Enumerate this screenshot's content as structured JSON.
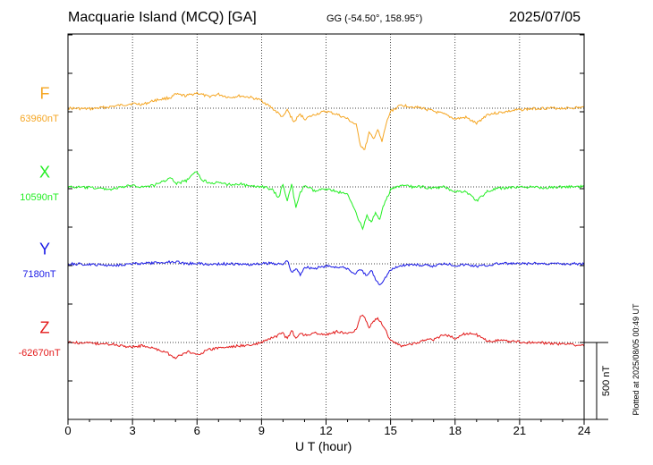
{
  "header": {
    "station": "Macquarie Island (MCQ)  [GA]",
    "coords": "GG (-54.50°, 158.95°)",
    "date": "2025/07/05"
  },
  "plotted_note": "Plotted at 2025/08/05 00:49 UT",
  "scale_label": "500 nT",
  "chart_data": {
    "type": "line",
    "title": "Macquarie Island (MCQ)  [GA]",
    "xlabel": "U T (hour)",
    "ylabel": "",
    "xlim": [
      0,
      24
    ],
    "xticks": [
      "0",
      "3",
      "6",
      "9",
      "12",
      "15",
      "18",
      "21",
      "24"
    ],
    "grid": "dotted vertical lines every 3 hours; dotted baseline per component",
    "units": "nT",
    "scale_bar_nT": 500,
    "series": [
      {
        "name": "F",
        "baseline_label": "63960nT",
        "baseline": 63960,
        "color": "#f5a623",
        "points": [
          [
            0,
            63960
          ],
          [
            1,
            63955
          ],
          [
            2,
            63970
          ],
          [
            3,
            63990
          ],
          [
            3.5,
            63985
          ],
          [
            4,
            64010
          ],
          [
            4.8,
            64030
          ],
          [
            5,
            64050
          ],
          [
            5.5,
            64040
          ],
          [
            6,
            64060
          ],
          [
            6.5,
            64035
          ],
          [
            7,
            64050
          ],
          [
            7.5,
            64030
          ],
          [
            8,
            64040
          ],
          [
            8.5,
            64030
          ],
          [
            9,
            64010
          ],
          [
            9.5,
            63960
          ],
          [
            10,
            63900
          ],
          [
            10.2,
            63950
          ],
          [
            10.5,
            63870
          ],
          [
            10.8,
            63920
          ],
          [
            11,
            63890
          ],
          [
            11.5,
            63920
          ],
          [
            12,
            63940
          ],
          [
            12.5,
            63920
          ],
          [
            13,
            63890
          ],
          [
            13.4,
            63850
          ],
          [
            13.6,
            63720
          ],
          [
            13.8,
            63690
          ],
          [
            14,
            63800
          ],
          [
            14.2,
            63760
          ],
          [
            14.4,
            63820
          ],
          [
            14.6,
            63740
          ],
          [
            14.8,
            63860
          ],
          [
            15,
            63940
          ],
          [
            15.5,
            63980
          ],
          [
            16,
            63970
          ],
          [
            16.5,
            63960
          ],
          [
            17,
            63940
          ],
          [
            17.5,
            63920
          ],
          [
            18,
            63890
          ],
          [
            18.5,
            63900
          ],
          [
            19,
            63860
          ],
          [
            19.5,
            63920
          ],
          [
            20,
            63930
          ],
          [
            21,
            63950
          ],
          [
            22,
            63960
          ],
          [
            23,
            63960
          ],
          [
            24,
            63965
          ]
        ]
      },
      {
        "name": "X",
        "baseline_label": "10590nT",
        "baseline": 10590,
        "color": "#22ee22",
        "points": [
          [
            0,
            10590
          ],
          [
            1,
            10585
          ],
          [
            2,
            10575
          ],
          [
            3,
            10600
          ],
          [
            3.5,
            10590
          ],
          [
            4,
            10600
          ],
          [
            4.8,
            10650
          ],
          [
            5,
            10610
          ],
          [
            5.5,
            10630
          ],
          [
            6,
            10690
          ],
          [
            6.2,
            10640
          ],
          [
            6.5,
            10620
          ],
          [
            7,
            10615
          ],
          [
            7.5,
            10605
          ],
          [
            8,
            10610
          ],
          [
            8.5,
            10590
          ],
          [
            9,
            10595
          ],
          [
            9.5,
            10570
          ],
          [
            9.8,
            10520
          ],
          [
            10,
            10610
          ],
          [
            10.2,
            10500
          ],
          [
            10.4,
            10610
          ],
          [
            10.6,
            10450
          ],
          [
            10.8,
            10550
          ],
          [
            11,
            10600
          ],
          [
            11.5,
            10560
          ],
          [
            12,
            10580
          ],
          [
            12.5,
            10560
          ],
          [
            13,
            10540
          ],
          [
            13.3,
            10460
          ],
          [
            13.5,
            10380
          ],
          [
            13.7,
            10320
          ],
          [
            13.9,
            10400
          ],
          [
            14.1,
            10360
          ],
          [
            14.3,
            10420
          ],
          [
            14.5,
            10380
          ],
          [
            14.7,
            10480
          ],
          [
            15,
            10570
          ],
          [
            15.5,
            10600
          ],
          [
            16,
            10590
          ],
          [
            16.5,
            10590
          ],
          [
            17,
            10580
          ],
          [
            17.5,
            10590
          ],
          [
            18,
            10560
          ],
          [
            18.5,
            10560
          ],
          [
            19,
            10500
          ],
          [
            19.5,
            10560
          ],
          [
            20,
            10580
          ],
          [
            21,
            10590
          ],
          [
            22,
            10585
          ],
          [
            23,
            10590
          ],
          [
            24,
            10592
          ]
        ]
      },
      {
        "name": "Y",
        "baseline_label": "7180nT",
        "baseline": 7180,
        "color": "#1a1ae6",
        "points": [
          [
            0,
            7180
          ],
          [
            1,
            7175
          ],
          [
            2,
            7170
          ],
          [
            3,
            7180
          ],
          [
            4,
            7185
          ],
          [
            5,
            7195
          ],
          [
            5.5,
            7180
          ],
          [
            6,
            7185
          ],
          [
            6.5,
            7175
          ],
          [
            7,
            7180
          ],
          [
            8,
            7178
          ],
          [
            8.5,
            7175
          ],
          [
            9,
            7180
          ],
          [
            9.5,
            7185
          ],
          [
            10,
            7175
          ],
          [
            10.2,
            7205
          ],
          [
            10.4,
            7120
          ],
          [
            10.6,
            7150
          ],
          [
            10.8,
            7110
          ],
          [
            11,
            7160
          ],
          [
            11.5,
            7150
          ],
          [
            12,
            7165
          ],
          [
            12.5,
            7160
          ],
          [
            13,
            7150
          ],
          [
            13.3,
            7115
          ],
          [
            13.6,
            7140
          ],
          [
            13.9,
            7100
          ],
          [
            14.1,
            7140
          ],
          [
            14.3,
            7080
          ],
          [
            14.5,
            7045
          ],
          [
            14.7,
            7080
          ],
          [
            15,
            7140
          ],
          [
            15.5,
            7170
          ],
          [
            16,
            7175
          ],
          [
            16.5,
            7170
          ],
          [
            17,
            7165
          ],
          [
            17.5,
            7185
          ],
          [
            18,
            7170
          ],
          [
            18.5,
            7175
          ],
          [
            19,
            7165
          ],
          [
            19.5,
            7170
          ],
          [
            20,
            7182
          ],
          [
            21,
            7180
          ],
          [
            22,
            7182
          ],
          [
            23,
            7180
          ],
          [
            24,
            7181
          ]
        ]
      },
      {
        "name": "Z",
        "baseline_label": "-62670nT",
        "baseline": -62670,
        "color": "#e31a1a",
        "points": [
          [
            0,
            -62670
          ],
          [
            1,
            -62675
          ],
          [
            2,
            -62680
          ],
          [
            3,
            -62700
          ],
          [
            3.5,
            -62690
          ],
          [
            4,
            -62710
          ],
          [
            4.5,
            -62730
          ],
          [
            5,
            -62770
          ],
          [
            5.3,
            -62750
          ],
          [
            5.6,
            -62730
          ],
          [
            6,
            -62750
          ],
          [
            6.5,
            -62720
          ],
          [
            7,
            -62705
          ],
          [
            7.5,
            -62700
          ],
          [
            8,
            -62690
          ],
          [
            8.5,
            -62690
          ],
          [
            9,
            -62670
          ],
          [
            9.5,
            -62640
          ],
          [
            10,
            -62610
          ],
          [
            10.2,
            -62650
          ],
          [
            10.4,
            -62590
          ],
          [
            10.6,
            -62650
          ],
          [
            10.8,
            -62610
          ],
          [
            11,
            -62620
          ],
          [
            11.5,
            -62610
          ],
          [
            12,
            -62620
          ],
          [
            12.5,
            -62600
          ],
          [
            13,
            -62610
          ],
          [
            13.4,
            -62590
          ],
          [
            13.6,
            -62490
          ],
          [
            13.8,
            -62500
          ],
          [
            14,
            -62580
          ],
          [
            14.2,
            -62530
          ],
          [
            14.4,
            -62510
          ],
          [
            14.6,
            -62550
          ],
          [
            14.8,
            -62600
          ],
          [
            15,
            -62660
          ],
          [
            15.5,
            -62690
          ],
          [
            16,
            -62680
          ],
          [
            16.5,
            -62660
          ],
          [
            17,
            -62650
          ],
          [
            17.5,
            -62620
          ],
          [
            18,
            -62640
          ],
          [
            18.5,
            -62610
          ],
          [
            19,
            -62620
          ],
          [
            19.5,
            -62660
          ],
          [
            20,
            -62655
          ],
          [
            21,
            -62668
          ],
          [
            22,
            -62672
          ],
          [
            23,
            -62680
          ],
          [
            24,
            -62690
          ]
        ]
      }
    ]
  }
}
